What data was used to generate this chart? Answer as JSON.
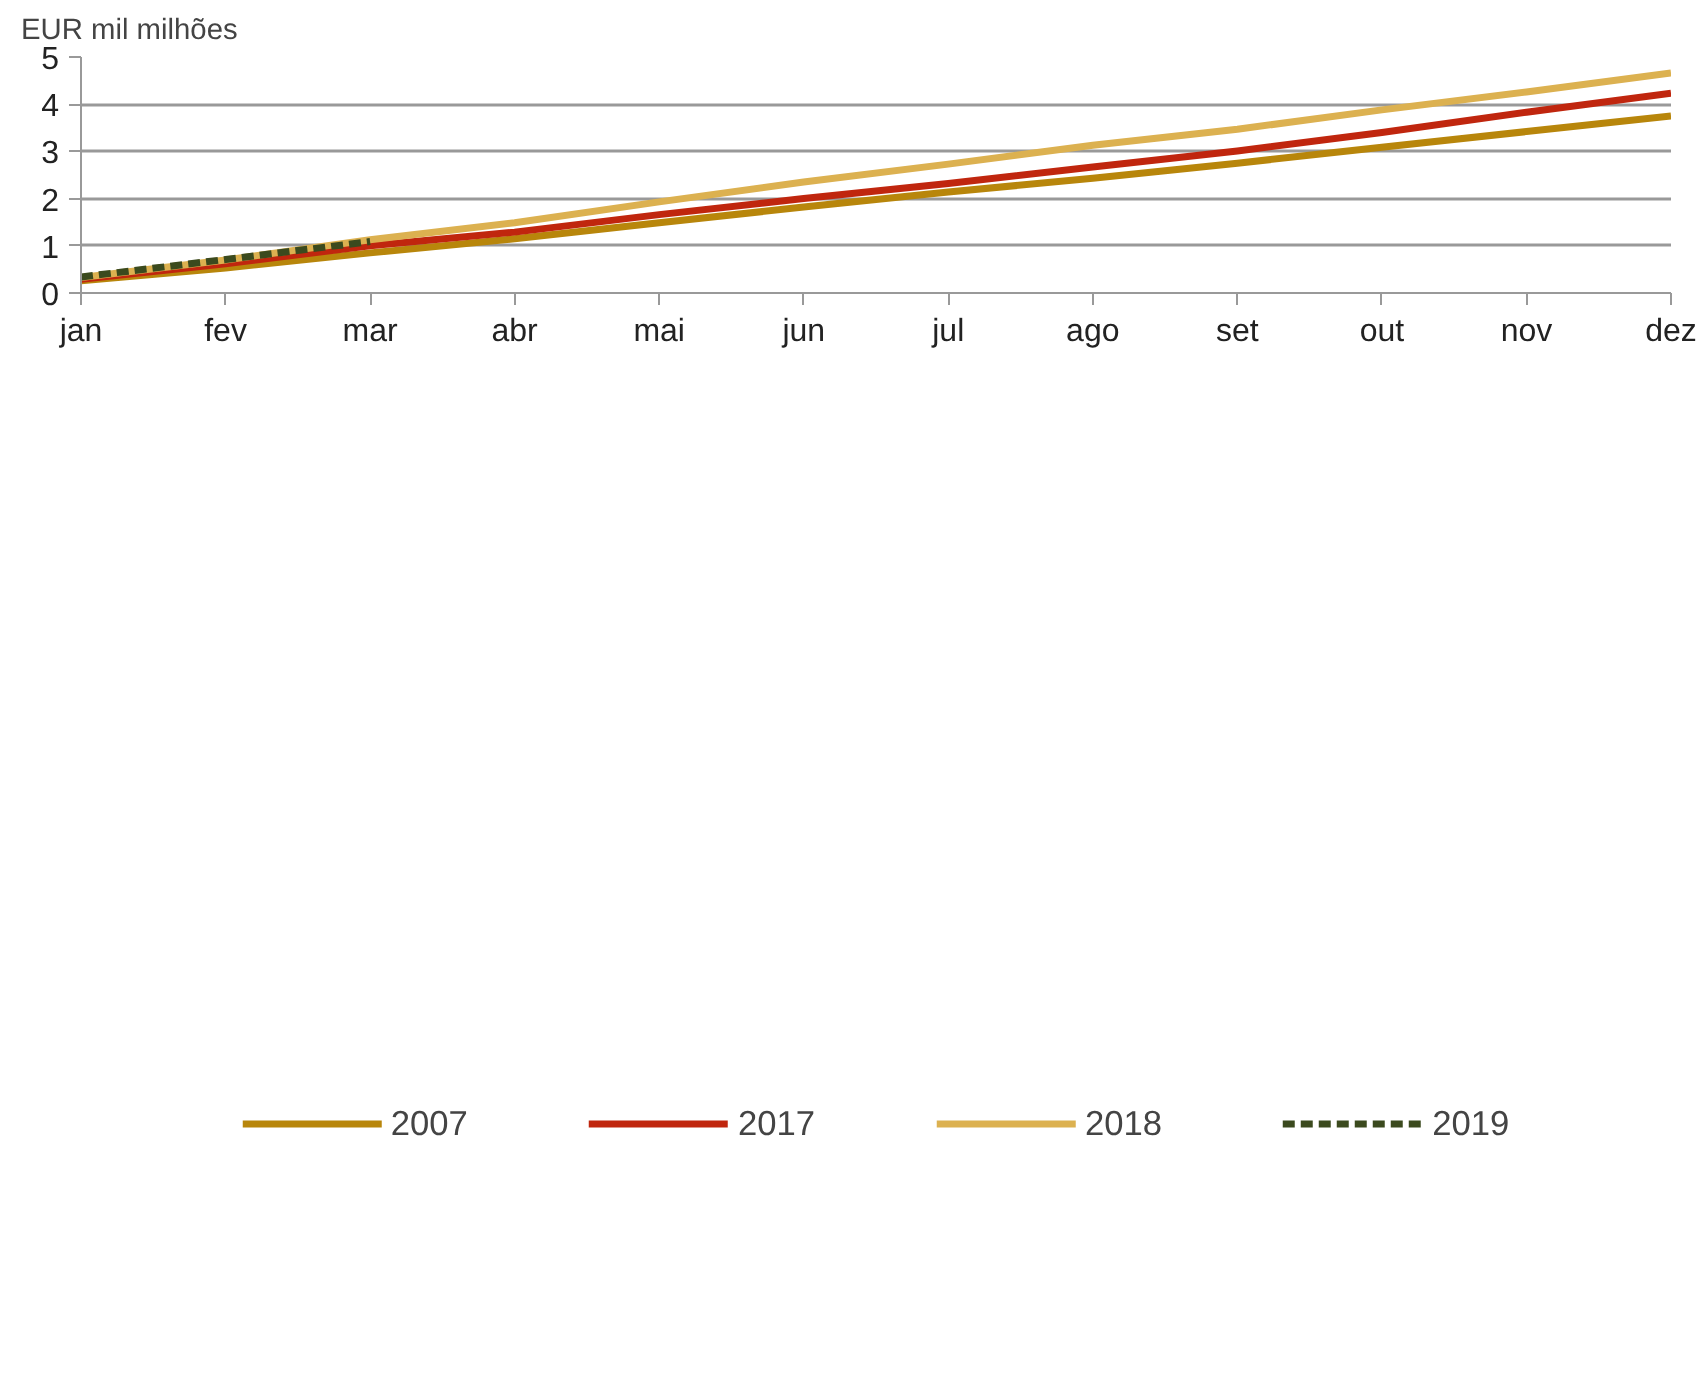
{
  "chart_data": {
    "type": "line",
    "ylabel": "EUR mil milhões",
    "categories": [
      "jan",
      "fev",
      "mar",
      "abr",
      "mai",
      "jun",
      "jul",
      "ago",
      "set",
      "out",
      "nov",
      "dez"
    ],
    "series": [
      {
        "name": "2007",
        "color": "#b8860b",
        "values": [
          0.26,
          0.53,
          0.85,
          1.15,
          1.49,
          1.82,
          2.14,
          2.43,
          2.75,
          3.09,
          3.42,
          3.75
        ]
      },
      {
        "name": "2017",
        "color": "#c0260e",
        "values": [
          0.29,
          0.62,
          1.0,
          1.29,
          1.66,
          2.0,
          2.32,
          2.67,
          3.01,
          3.4,
          3.83,
          4.23
        ]
      },
      {
        "name": "2018",
        "color": "#dcb150",
        "values": [
          0.33,
          0.7,
          1.13,
          1.49,
          1.93,
          2.35,
          2.73,
          3.13,
          3.47,
          3.88,
          4.26,
          4.66
        ]
      },
      {
        "name": "2019",
        "color": "#3b4a1e",
        "line_style": "dashed",
        "values": [
          0.34,
          0.71,
          1.09,
          null,
          null,
          null,
          null,
          null,
          null,
          null,
          null,
          null
        ]
      }
    ],
    "ylim": [
      0,
      5
    ],
    "yticks": [
      0,
      1,
      2,
      3,
      4,
      5
    ],
    "grid": "y",
    "legend": "bottom",
    "marker": "none",
    "line_style": "solid"
  }
}
